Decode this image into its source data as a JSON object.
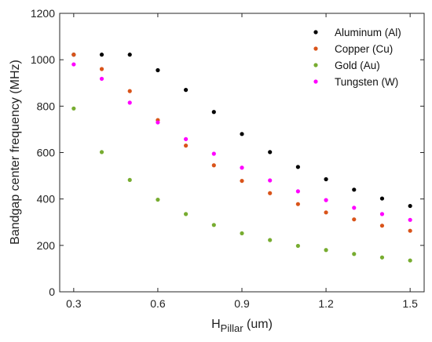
{
  "chart_data": {
    "type": "scatter",
    "xlabel_main": "H",
    "xlabel_sub": "Pillar",
    "xlabel_unit": " (um)",
    "ylabel": "Bandgap center frequency (MHz)",
    "xlim": [
      0.25,
      1.55
    ],
    "ylim": [
      0,
      1200
    ],
    "x_ticks": [
      0.3,
      0.6,
      0.9,
      1.2,
      1.5
    ],
    "x_tick_labels": [
      "0.3",
      "0.6",
      "0.9",
      "1.2",
      "1.5"
    ],
    "y_ticks": [
      0,
      200,
      400,
      600,
      800,
      1000,
      1200
    ],
    "y_tick_labels": [
      "0",
      "200",
      "400",
      "600",
      "800",
      "1000",
      "1200"
    ],
    "legend_position": "top-right",
    "x": [
      0.3,
      0.4,
      0.5,
      0.6,
      0.7,
      0.8,
      0.9,
      1.0,
      1.1,
      1.2,
      1.3,
      1.4,
      1.5
    ],
    "series": [
      {
        "name": "Aluminum (Al)",
        "color": "#000000",
        "values": [
          1022,
          1022,
          1022,
          955,
          870,
          775,
          680,
          602,
          538,
          485,
          440,
          402,
          370
        ]
      },
      {
        "name": "Copper (Cu)",
        "color": "#d9541a",
        "values": [
          1022,
          960,
          865,
          740,
          630,
          545,
          478,
          425,
          378,
          342,
          312,
          285,
          263
        ]
      },
      {
        "name": "Gold (Au)",
        "color": "#77ac30",
        "values": [
          790,
          602,
          482,
          397,
          335,
          288,
          252,
          223,
          198,
          180,
          163,
          148,
          135
        ]
      },
      {
        "name": "Tungsten (W)",
        "color": "#ff00ff",
        "values": [
          980,
          918,
          815,
          730,
          658,
          595,
          535,
          480,
          433,
          395,
          362,
          335,
          310
        ]
      }
    ]
  }
}
